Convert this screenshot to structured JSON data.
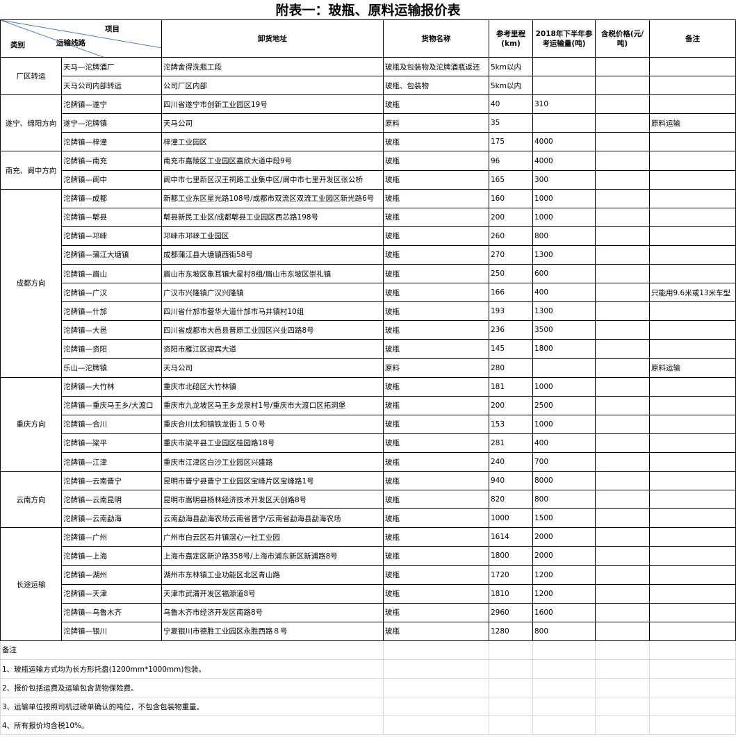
{
  "header": {
    "title": "附表一：玻瓶、原料运输报价表"
  },
  "table": {
    "corner": {
      "item": "项目",
      "route": "运输线路",
      "category": "类别"
    },
    "columns": [
      "卸货地址",
      "货物名称",
      "参考里程(km)",
      "2018年下半年参考运输量(吨)",
      "含税价格(元/吨)",
      "备注"
    ],
    "groups": [
      {
        "name": "厂区转运",
        "rows": [
          {
            "route": "天马—沱牌酒厂",
            "address": "沱牌舍得洗瓶工段",
            "goods": "玻瓶及包装物及沱牌酒瓶返还",
            "km": "5km以内"
          },
          {
            "route": "天马公司内部转运",
            "address": "公司厂区内部",
            "goods": "玻瓶、包装物",
            "km": "5km以内"
          }
        ]
      },
      {
        "name": "遂宁、绵阳方向",
        "rows": [
          {
            "route": "沱牌镇—遂宁",
            "address": "四川省遂宁市创新工业园区19号",
            "goods": "玻瓶",
            "km": 40,
            "volume": 310
          },
          {
            "route": "遂宁—沱牌镇",
            "address": "天马公司",
            "goods": "原料",
            "km": 35,
            "note": "原料运输"
          },
          {
            "route": "沱牌镇—梓潼",
            "address": "梓潼工业园区",
            "goods": "玻瓶",
            "km": 175,
            "volume": 4000
          }
        ]
      },
      {
        "name": "南充、阆中方向",
        "rows": [
          {
            "route": "沱牌镇—南充",
            "address": "南充市嘉陵区工业园区嘉欣大道中段9号",
            "goods": "玻瓶",
            "km": 96,
            "volume": 4000
          },
          {
            "route": "沱牌镇—阆中",
            "address": "阆中市七里新区汉王祠路工业集中区/阆中市七里开发区张公桥",
            "goods": "玻瓶",
            "km": 165,
            "volume": 300
          }
        ]
      },
      {
        "name": "成都方向",
        "rows": [
          {
            "route": "沱牌镇—成都",
            "address": "新都工业东区星光路108号/成都市双流区双流工业园区新光路6号",
            "goods": "玻瓶",
            "km": 160,
            "volume": 1000
          },
          {
            "route": "沱牌镇—郫县",
            "address": "郫县新民工业区/成都郫县工业园区西芯路198号",
            "goods": "玻瓶",
            "km": 200,
            "volume": 1000
          },
          {
            "route": "沱牌镇—邛崃",
            "address": "邛崃市邛崃工业园区",
            "goods": "玻瓶",
            "km": 260,
            "volume": 800
          },
          {
            "route": "沱牌镇—蒲江大塘镇",
            "address": "成都蒲江县大塘镇西街58号",
            "goods": "玻瓶",
            "km": 270,
            "volume": 1300
          },
          {
            "route": "沱牌镇—眉山",
            "address": "眉山市东坡区象耳镇大星村8组/眉山市东坡区崇礼镇",
            "goods": "玻瓶",
            "km": 250,
            "volume": 600
          },
          {
            "route": "沱牌镇—广汉",
            "address": "广汉市兴隆镇广汉兴隆镇",
            "goods": "玻瓶",
            "km": 166,
            "volume": 400,
            "note": "只能用9.6米或13米车型"
          },
          {
            "route": "沱牌镇—什邡",
            "address": "四川省什邡市蓥华大道什邡市马井镇村10组",
            "goods": "玻瓶",
            "km": 193,
            "volume": 1300
          },
          {
            "route": "沱牌镇—大邑",
            "address": "四川省成都市大邑县晋原工业园区兴业四路8号",
            "goods": "玻瓶",
            "km": 236,
            "volume": 3500
          },
          {
            "route": "沱牌镇—资阳",
            "address": "资阳市雁江区迎宾大道",
            "goods": "玻瓶",
            "km": 145,
            "volume": 1800
          },
          {
            "route": "乐山—沱牌镇",
            "address": "天马公司",
            "goods": "原料",
            "km": 280,
            "note": "原料运输"
          }
        ]
      },
      {
        "name": "重庆方向",
        "rows": [
          {
            "route": "沱牌镇—大竹林",
            "address": "重庆市北碚区大竹林镇",
            "goods": "玻瓶",
            "km": 181,
            "volume": 1000
          },
          {
            "route": "沱牌镇—重庆马王乡/大渡口",
            "address": "重庆市九龙坡区马王乡龙泉村1号/重庆市大渡口区拓洞堡",
            "goods": "玻瓶",
            "km": 200,
            "volume": 2500
          },
          {
            "route": "沱牌镇—合川",
            "address": "重庆合川太和镇铁龙街１５０号",
            "goods": "玻瓶",
            "km": 153,
            "volume": 1000
          },
          {
            "route": "沱牌镇—梁平",
            "address": "重庆市梁平县工业园区桂园路18号",
            "goods": "玻瓶",
            "km": 281,
            "volume": 400
          },
          {
            "route": "沱牌镇—江津",
            "address": "重庆市江津区白沙工业园区兴盛路",
            "goods": "玻瓶",
            "km": 240,
            "volume": 700
          }
        ]
      },
      {
        "name": "云南方向",
        "rows": [
          {
            "route": "沱牌镇—云南晋宁",
            "address": "昆明市晋宁县晋宁工业园区宝峰片区宝峰路1号",
            "goods": "玻瓶",
            "km": 940,
            "volume": 8000
          },
          {
            "route": "沱牌镇—云南昆明",
            "address": "昆明市嵩明县杨林经济技术开发区天创路8号",
            "goods": "玻瓶",
            "km": 820,
            "volume": 800
          },
          {
            "route": "沱牌镇—云南勐海",
            "address": "云南勐海县勐海农场云南省晋宁/云南省勐海县勐海农场",
            "goods": "玻瓶",
            "km": 1000,
            "volume": 1500
          }
        ]
      },
      {
        "name": "长途运输",
        "rows": [
          {
            "route": "沱牌镇—广州",
            "address": "广州市白云区石井镇滘心一社工业园",
            "goods": "玻瓶",
            "km": 1614,
            "volume": 2000
          },
          {
            "route": "沱牌镇—上海",
            "address": "上海市嘉定区新沪路358号/上海市浦东新区新浦路8号",
            "goods": "玻瓶",
            "km": 1800,
            "volume": 2000
          },
          {
            "route": "沱牌镇—湖州",
            "address": "湖州市东林镇工业功能区北区青山路",
            "goods": "玻瓶",
            "km": 1720,
            "volume": 1200
          },
          {
            "route": "沱牌镇—天津",
            "address": "天津市武清开发区福源道8号",
            "goods": "玻瓶",
            "km": 1810,
            "volume": 1200
          },
          {
            "route": "沱牌镇—乌鲁木齐",
            "address": "乌鲁木齐市经济开发区南路8号",
            "goods": "玻瓶",
            "km": 2960,
            "volume": 1600
          },
          {
            "route": "沱牌镇—银川",
            "address": "宁夏银川市德胜工业园区永胜西路８号",
            "goods": "玻瓶",
            "km": 1280,
            "volume": 800
          }
        ]
      }
    ]
  },
  "notes": {
    "title": "备注",
    "items": [
      "1、玻瓶运输方式均为长方形托盘(1200mm*1000mm)包装。",
      "2、报价包括运费及运输包含货物保险费。",
      "3、运输单位按照司机过磅单确认的吨位，不包含包装物重量。",
      "4、所有报价均含税10%。"
    ]
  }
}
